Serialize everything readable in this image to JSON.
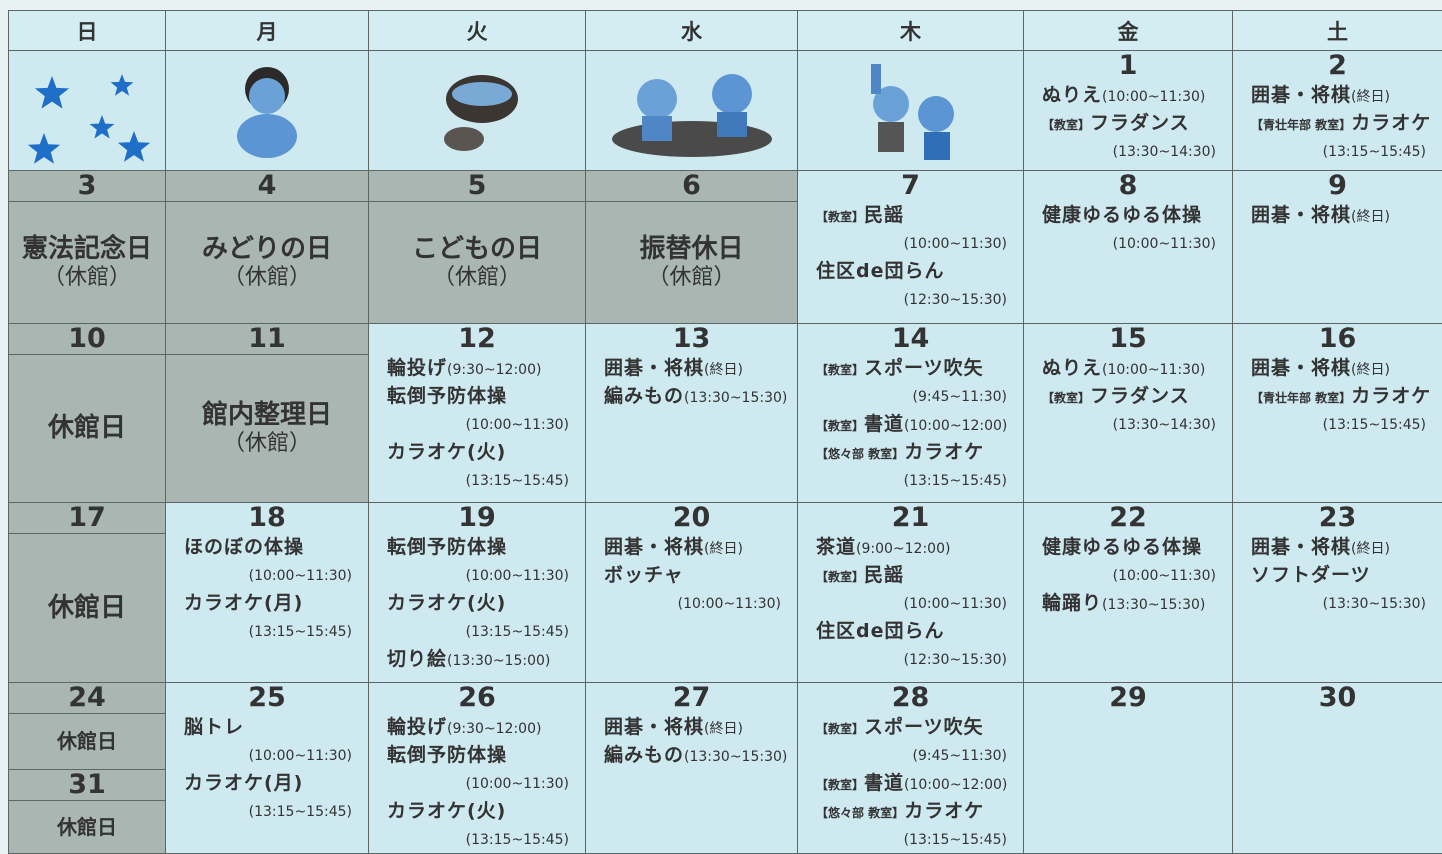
{
  "weekdays": [
    "日",
    "月",
    "火",
    "水",
    "木",
    "金",
    "土"
  ],
  "weeks": [
    [
      null,
      null,
      null,
      null,
      null,
      {
        "day": 1,
        "lines": [
          {
            "name": "ぬりえ",
            "time": "(10:00~11:30)"
          },
          {
            "tag": "【教室】",
            "name": "フラダンス"
          },
          {
            "time": "(13:30~14:30)"
          }
        ]
      },
      {
        "day": 2,
        "lines": [
          {
            "name": "囲碁・将棋",
            "time": "(終日)"
          },
          {
            "tag": "【青壮年部 教室】",
            "name": "カラオケ"
          },
          {
            "time": "(13:15~15:45)"
          }
        ]
      }
    ],
    [
      {
        "day": 3,
        "holiday": "憲法記念日",
        "note": "（休館）"
      },
      {
        "day": 4,
        "holiday": "みどりの日",
        "note": "（休館）"
      },
      {
        "day": 5,
        "holiday": "こどもの日",
        "note": "（休館）"
      },
      {
        "day": 6,
        "holiday": "振替休日",
        "note": "（休館）"
      },
      {
        "day": 7,
        "lines": [
          {
            "tag": "【教室】",
            "name": "民謡"
          },
          {
            "time": "(10:00~11:30)"
          },
          {
            "name": "住区de団らん"
          },
          {
            "time": "(12:30~15:30)"
          }
        ]
      },
      {
        "day": 8,
        "lines": [
          {
            "name": "健康ゆるゆる体操"
          },
          {
            "time": "(10:00~11:30)"
          }
        ]
      },
      {
        "day": 9,
        "lines": [
          {
            "name": "囲碁・将棋",
            "time": "(終日)"
          }
        ]
      }
    ],
    [
      {
        "day": 10,
        "holiday": "休館日"
      },
      {
        "day": 11,
        "holiday": "館内整理日",
        "note": "（休館）"
      },
      {
        "day": 12,
        "lines": [
          {
            "name": "輪投げ",
            "time": "(9:30~12:00)"
          },
          {
            "name": "転倒予防体操"
          },
          {
            "time": "(10:00~11:30)"
          },
          {
            "name": "カラオケ(火)"
          },
          {
            "time": "(13:15~15:45)"
          }
        ]
      },
      {
        "day": 13,
        "lines": [
          {
            "name": "囲碁・将棋",
            "time": "(終日)"
          },
          {
            "name": "編みもの",
            "time": "(13:30~15:30)"
          }
        ]
      },
      {
        "day": 14,
        "lines": [
          {
            "tag": "【教室】",
            "name": "スポーツ吹矢"
          },
          {
            "time": "(9:45~11:30)"
          },
          {
            "tag": "【教室】",
            "name": "書道",
            "time": "(10:00~12:00)"
          },
          {
            "tag": "【悠々部 教室】",
            "name": "カラオケ"
          },
          {
            "time": "(13:15~15:45)"
          }
        ]
      },
      {
        "day": 15,
        "lines": [
          {
            "name": "ぬりえ",
            "time": "(10:00~11:30)"
          },
          {
            "tag": "【教室】",
            "name": "フラダンス"
          },
          {
            "time": "(13:30~14:30)"
          }
        ]
      },
      {
        "day": 16,
        "lines": [
          {
            "name": "囲碁・将棋",
            "time": "(終日)"
          },
          {
            "tag": "【青壮年部 教室】",
            "name": "カラオケ"
          },
          {
            "time": "(13:15~15:45)"
          }
        ]
      }
    ],
    [
      {
        "day": 17,
        "holiday": "休館日"
      },
      {
        "day": 18,
        "lines": [
          {
            "name": "ほのぼの体操"
          },
          {
            "time": "(10:00~11:30)"
          },
          {
            "name": "カラオケ(月)"
          },
          {
            "time": "(13:15~15:45)"
          }
        ]
      },
      {
        "day": 19,
        "lines": [
          {
            "name": "転倒予防体操"
          },
          {
            "time": "(10:00~11:30)"
          },
          {
            "name": "カラオケ(火)"
          },
          {
            "time": "(13:15~15:45)"
          },
          {
            "name": "切り絵",
            "time": "(13:30~15:00)"
          }
        ]
      },
      {
        "day": 20,
        "lines": [
          {
            "name": "囲碁・将棋",
            "time": "(終日)"
          },
          {
            "name": "ボッチャ"
          },
          {
            "time": "(10:00~11:30)"
          }
        ]
      },
      {
        "day": 21,
        "lines": [
          {
            "name": "茶道",
            "time": "(9:00~12:00)"
          },
          {
            "tag": "【教室】",
            "name": "民謡"
          },
          {
            "time": "(10:00~11:30)"
          },
          {
            "name": "住区de団らん"
          },
          {
            "time": "(12:30~15:30)"
          }
        ]
      },
      {
        "day": 22,
        "lines": [
          {
            "name": "健康ゆるゆる体操"
          },
          {
            "time": "(10:00~11:30)"
          },
          {
            "name": "輪踊り",
            "time": "(13:30~15:30)"
          }
        ]
      },
      {
        "day": 23,
        "lines": [
          {
            "name": "囲碁・将棋",
            "time": "(終日)"
          },
          {
            "name": "ソフトダーツ"
          },
          {
            "time": "(13:30~15:30)"
          }
        ]
      }
    ],
    [
      {
        "split": [
          {
            "day": 24,
            "holiday": "休館日"
          },
          {
            "day": 31,
            "holiday": "休館日"
          }
        ]
      },
      {
        "day": 25,
        "lines": [
          {
            "name": "脳トレ"
          },
          {
            "time": "(10:00~11:30)"
          },
          {
            "name": "カラオケ(月)"
          },
          {
            "time": "(13:15~15:45)"
          }
        ]
      },
      {
        "day": 26,
        "lines": [
          {
            "name": "輪投げ",
            "time": "(9:30~12:00)"
          },
          {
            "name": "転倒予防体操"
          },
          {
            "time": "(10:00~11:30)"
          },
          {
            "name": "カラオケ(火)"
          },
          {
            "time": "(13:15~15:45)"
          }
        ]
      },
      {
        "day": 27,
        "lines": [
          {
            "name": "囲碁・将棋",
            "time": "(終日)"
          },
          {
            "name": "編みもの",
            "time": "(13:30~15:30)"
          }
        ]
      },
      {
        "day": 28,
        "lines": [
          {
            "tag": "【教室】",
            "name": "スポーツ吹矢"
          },
          {
            "time": "(9:45~11:30)"
          },
          {
            "tag": "【教室】",
            "name": "書道",
            "time": "(10:00~12:00)"
          },
          {
            "tag": "【悠々部 教室】",
            "name": "カラオケ"
          },
          {
            "time": "(13:15~15:45)"
          }
        ]
      },
      {
        "day": 29
      },
      {
        "day": 30
      }
    ]
  ]
}
